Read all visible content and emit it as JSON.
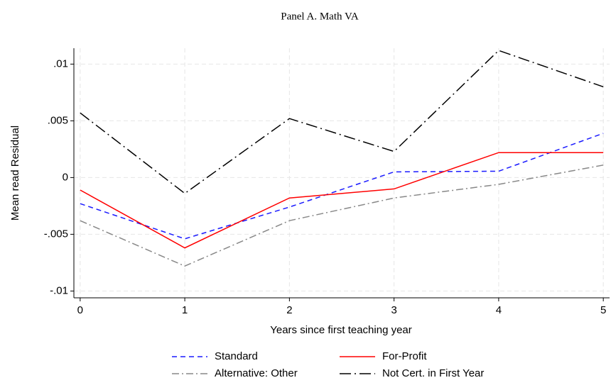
{
  "chart_data": {
    "type": "line",
    "title": "Panel A. Math VA",
    "xlabel": "Years since first teaching year",
    "ylabel": "Mean read Residual",
    "x": [
      0,
      1,
      2,
      3,
      4,
      5
    ],
    "xlim": [
      -0.06,
      5.06
    ],
    "xticks": [
      0,
      1,
      2,
      3,
      4,
      5
    ],
    "ylim": [
      -0.0106,
      0.0114
    ],
    "yticks": [
      {
        "value": -0.01,
        "label": "-.01"
      },
      {
        "value": -0.005,
        "label": "-.005"
      },
      0,
      {
        "value": 0.005,
        "label": ".005"
      },
      {
        "value": 0.01,
        "label": ".01"
      }
    ],
    "grid": true,
    "legend": "bottom",
    "series": [
      {
        "name": "Standard",
        "color": "#1a1aff",
        "dash": "dash",
        "values": [
          -0.0023,
          -0.0054,
          -0.0026,
          0.0005,
          0.00056,
          0.0039
        ]
      },
      {
        "name": "For-Profit",
        "color": "#ff0000",
        "dash": "solid",
        "values": [
          -0.0011,
          -0.0062,
          -0.0018,
          -0.001,
          0.0022,
          0.0022
        ]
      },
      {
        "name": "Alternative: Other",
        "color": "#888888",
        "dash": "dashdot",
        "values": [
          -0.0038,
          -0.0078,
          -0.0038,
          -0.0018,
          -0.0006,
          0.0011
        ]
      },
      {
        "name": "Not Cert. in First Year",
        "color": "#000000",
        "dash": "longdashdot",
        "values": [
          0.0057,
          -0.0014,
          0.0052,
          0.0023,
          0.0112,
          0.008
        ]
      }
    ]
  }
}
